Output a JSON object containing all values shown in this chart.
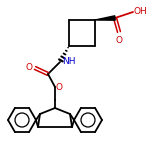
{
  "bg_color": "#ffffff",
  "bond_color": "#000000",
  "atom_colors": {
    "O": "#cc0000",
    "N": "#0000cc",
    "C": "#000000"
  },
  "line_width": 1.3,
  "figsize": [
    1.52,
    1.52
  ],
  "dpi": 100
}
